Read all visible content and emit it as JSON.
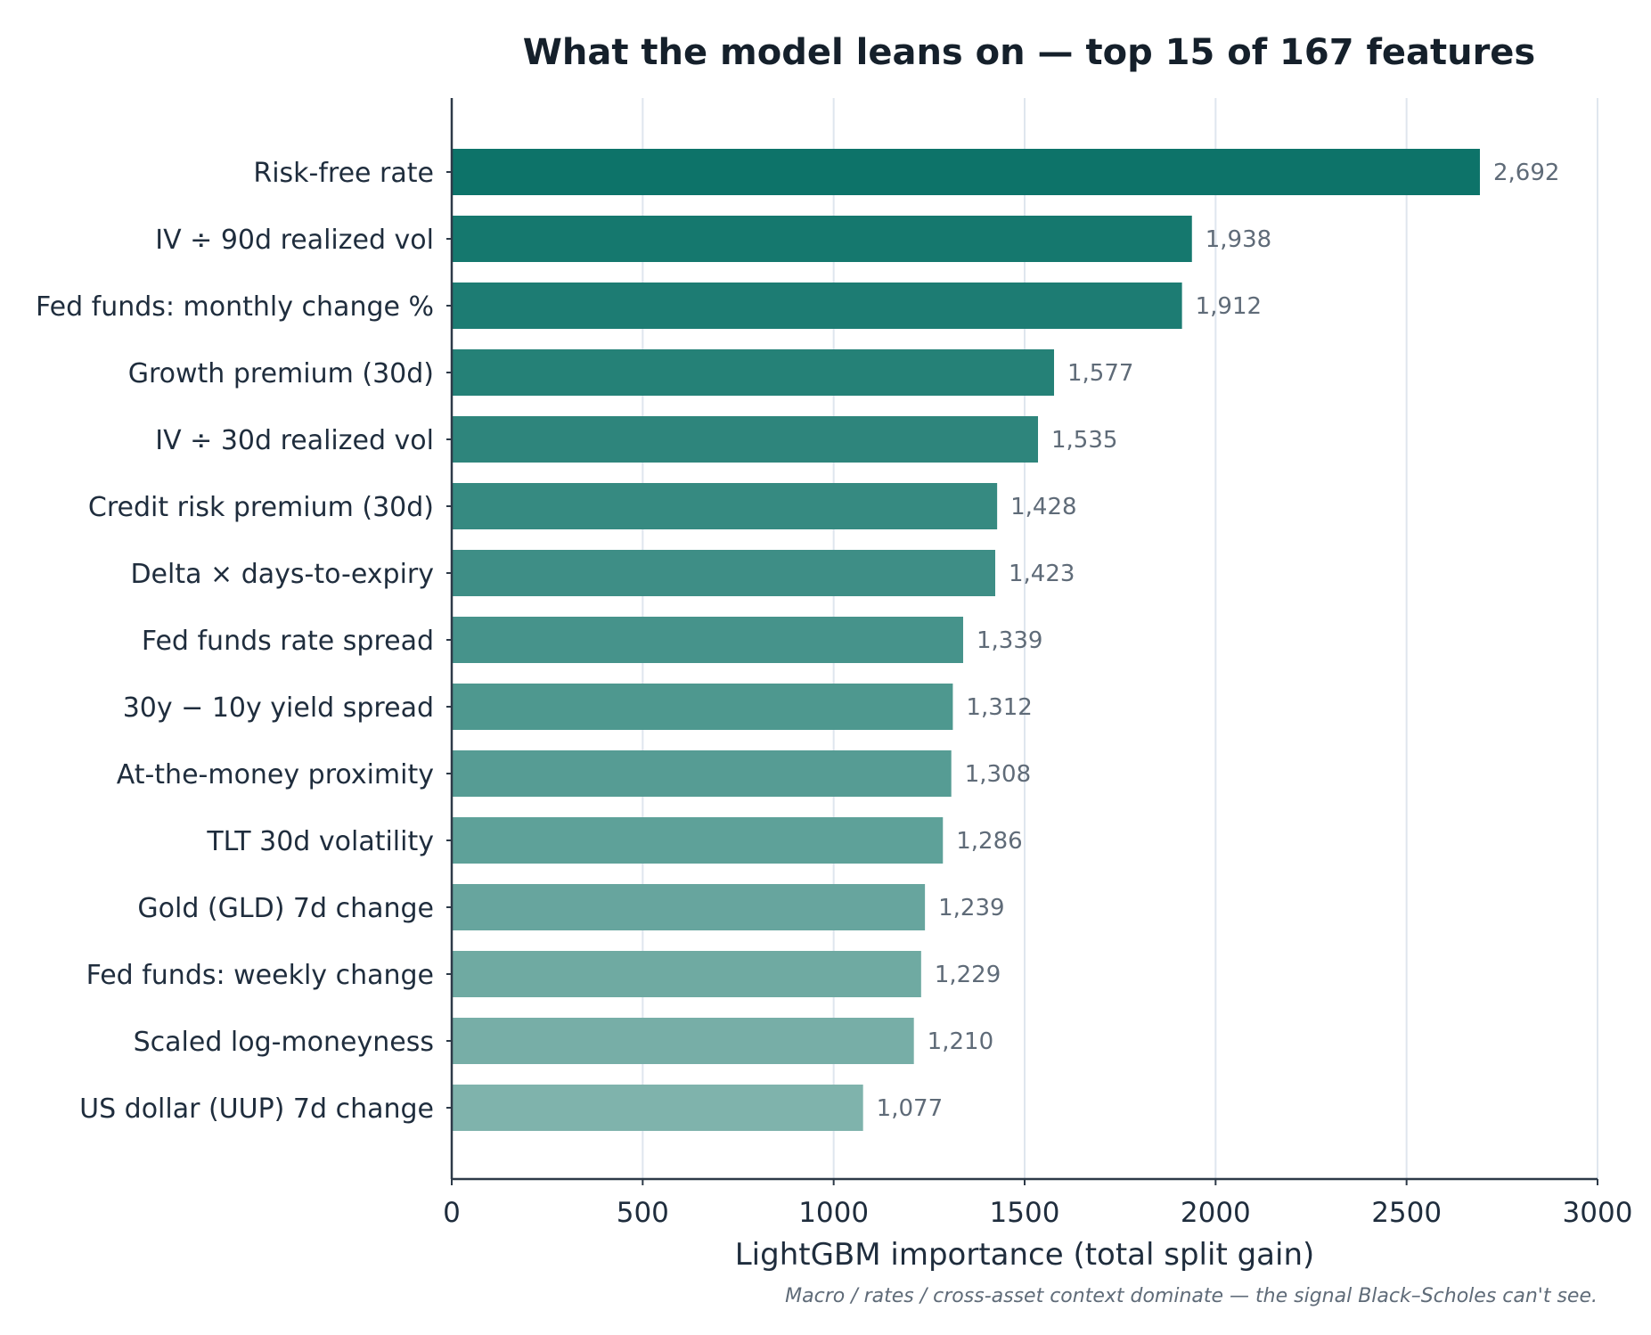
{
  "chart_data": {
    "type": "bar",
    "orientation": "horizontal",
    "title": "What the model leans on — top 15 of 167 features",
    "xlabel": "LightGBM importance (total split gain)",
    "ylabel": "",
    "caption": "Macro / rates / cross-asset context dominate — the signal Black–Scholes can't see.",
    "xlim": [
      0,
      3000
    ],
    "xticks": [
      0,
      500,
      1000,
      1500,
      2000,
      2500,
      3000
    ],
    "grid": "vertical",
    "categories": [
      "Risk-free rate",
      "IV ÷ 90d realized vol",
      "Fed funds: monthly change %",
      "Growth premium (30d)",
      "IV ÷ 30d realized vol",
      "Credit risk premium (30d)",
      "Delta × days-to-expiry",
      "Fed funds rate spread",
      "30y − 10y yield spread",
      "At-the-money proximity",
      "TLT 30d volatility",
      "Gold (GLD) 7d change",
      "Fed funds: weekly change",
      "Scaled log-moneyness",
      "US dollar (UUP) 7d change"
    ],
    "values": [
      2692,
      1938,
      1912,
      1577,
      1535,
      1428,
      1423,
      1339,
      1312,
      1308,
      1286,
      1239,
      1229,
      1210,
      1077
    ],
    "value_labels": [
      "2,692",
      "1,938",
      "1,912",
      "1,577",
      "1,535",
      "1,428",
      "1,423",
      "1,339",
      "1,312",
      "1,308",
      "1,286",
      "1,239",
      "1,229",
      "1,210",
      "1,077"
    ],
    "colors": {
      "bar_start": "#0d7369",
      "bar_end": "#7fb3ac",
      "axis": "#2d3a48",
      "grid": "#dfe6ee"
    }
  }
}
